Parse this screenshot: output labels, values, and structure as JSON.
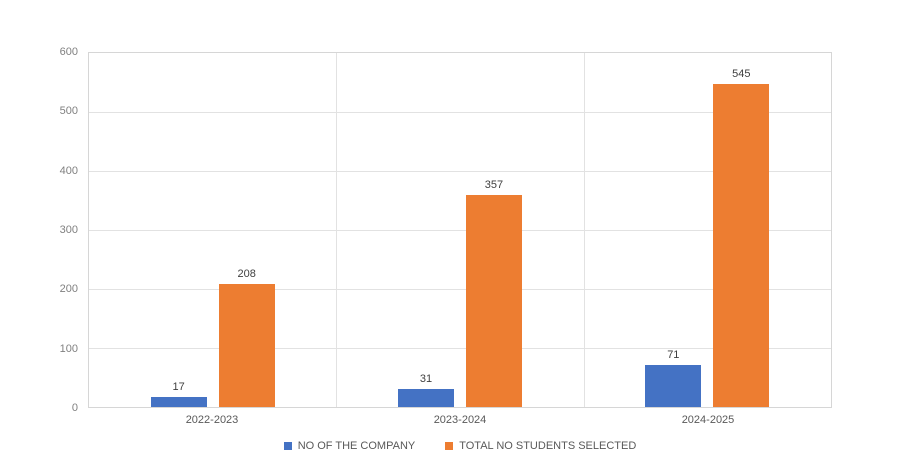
{
  "chart": {
    "background": "#FFFFFF",
    "grid_color": "#E2E2E2",
    "plot_border_color": "#D6D6D6",
    "tick_label_color": "#808080",
    "category_label_color": "#595959",
    "data_label_color": "#3F3F3F",
    "legend_text_color": "#595959"
  },
  "chart_data": {
    "type": "bar",
    "title": "",
    "xlabel": "",
    "ylabel": "",
    "categories": [
      "2022-2023",
      "2023-2024",
      "2024-2025"
    ],
    "series": [
      {
        "name": "NO OF THE COMPANY",
        "color": "#4472C4",
        "values": [
          17,
          31,
          71
        ]
      },
      {
        "name": "TOTAL NO STUDENTS SELECTED",
        "color": "#ED7D31",
        "values": [
          208,
          357,
          545
        ]
      }
    ],
    "ylim": [
      0,
      600
    ],
    "yticks": [
      0,
      100,
      200,
      300,
      400,
      500,
      600
    ],
    "grid": true,
    "data_labels": true,
    "legend_position": "bottom"
  }
}
